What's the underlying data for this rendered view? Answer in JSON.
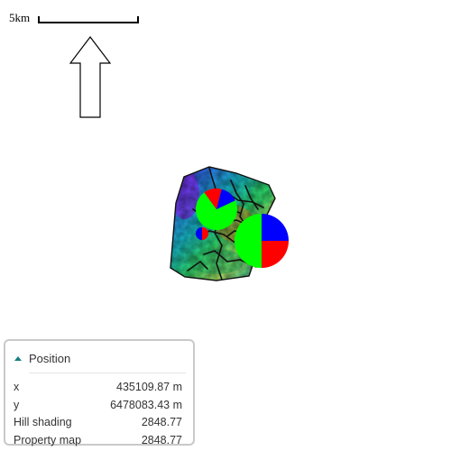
{
  "scale_bar": {
    "label": "5km"
  },
  "north_arrow": {
    "icon": "north-arrow-icon"
  },
  "map": {
    "layers": [
      "Hill shading",
      "Property map"
    ],
    "pies": [
      {
        "name": "small-pie",
        "slices": [
          {
            "color": "#00ff00",
            "value": 0.72
          },
          {
            "color": "#ff0000",
            "value": 0.14
          },
          {
            "color": "#0000ff",
            "value": 0.14
          }
        ]
      },
      {
        "name": "large-pie",
        "slices": [
          {
            "color": "#0000ff",
            "value": 0.25
          },
          {
            "color": "#ff0000",
            "value": 0.25
          },
          {
            "color": "#00ff00",
            "value": 0.5
          }
        ]
      },
      {
        "name": "tiny-pie",
        "slices": [
          {
            "color": "#ff0000",
            "value": 0.5
          },
          {
            "color": "#0000ff",
            "value": 0.5
          }
        ]
      }
    ]
  },
  "position_panel": {
    "title": "Position",
    "rows": [
      {
        "label": "x",
        "value": "435109.87 m"
      },
      {
        "label": "y",
        "value": "6478083.43 m"
      },
      {
        "label": "Hill shading",
        "value": "2848.77"
      },
      {
        "label": "Property map",
        "value": "2848.77"
      }
    ]
  }
}
